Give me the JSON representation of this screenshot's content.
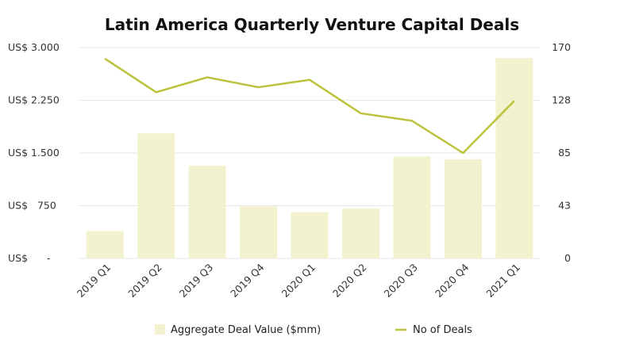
{
  "chart_data": {
    "type": "bar",
    "title": "Latin America Quarterly Venture Capital Deals",
    "categories": [
      "2019 Q1",
      "2019 Q2",
      "2019 Q3",
      "2019 Q4",
      "2020 Q1",
      "2020 Q2",
      "2020 Q3",
      "2020 Q4",
      "2021 Q1"
    ],
    "series": [
      {
        "name": "Aggregate Deal Value ($mm)",
        "type": "bar",
        "axis": "left",
        "color": "#f2f2cf",
        "values": [
          390,
          1780,
          1320,
          740,
          660,
          710,
          1450,
          1410,
          2850
        ]
      },
      {
        "name": "No of Deals",
        "type": "line",
        "axis": "right",
        "color": "#bcc33a",
        "values": [
          161,
          134,
          146,
          138,
          144,
          117,
          111,
          85,
          127
        ]
      }
    ],
    "left_axis": {
      "ylim": [
        0,
        3000
      ],
      "ticks": [
        {
          "value": 0,
          "label": "US$      -"
        },
        {
          "value": 750,
          "label": "US$   750"
        },
        {
          "value": 1500,
          "label": "US$ 1.500"
        },
        {
          "value": 2250,
          "label": "US$ 2.250"
        },
        {
          "value": 3000,
          "label": "US$ 3.000"
        }
      ]
    },
    "right_axis": {
      "ylim": [
        0,
        170
      ],
      "ticks": [
        {
          "value": 0,
          "label": "0"
        },
        {
          "value": 42.5,
          "label": "43"
        },
        {
          "value": 85,
          "label": "85"
        },
        {
          "value": 127.5,
          "label": "128"
        },
        {
          "value": 170,
          "label": "170"
        }
      ]
    },
    "grid": true,
    "legend_position": "bottom"
  }
}
